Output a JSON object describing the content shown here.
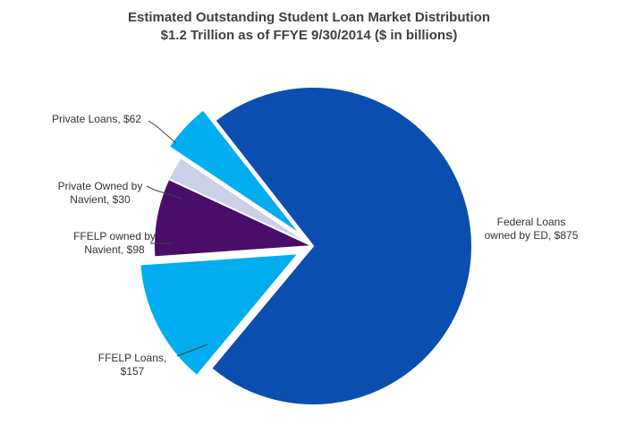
{
  "chart_data": {
    "type": "pie",
    "title": "Estimated Outstanding Student Loan Market Distribution",
    "subtitle": "$1.2 Trillion as of FFYE 9/30/2014 ($ in billions)",
    "slices": [
      {
        "label_lines": [
          "Federal Loans",
          "owned by ED, $875"
        ],
        "value": 875,
        "color": "#0A4EB0",
        "exploded": false
      },
      {
        "label_lines": [
          "FFELP Loans,",
          "$157"
        ],
        "value": 157,
        "color": "#00AEEF",
        "exploded": true
      },
      {
        "label_lines": [
          "FFELP owned by",
          "Navient, $98"
        ],
        "value": 98,
        "color": "#4A0D6A",
        "exploded": false
      },
      {
        "label_lines": [
          "Private Owned by",
          "Navient, $30"
        ],
        "value": 30,
        "color": "#CCD0E6",
        "exploded": false
      },
      {
        "label_lines": [
          "Private Loans, $62"
        ],
        "value": 62,
        "color": "#00AEEF",
        "exploded": true
      }
    ],
    "legend": "none",
    "grid": false
  }
}
